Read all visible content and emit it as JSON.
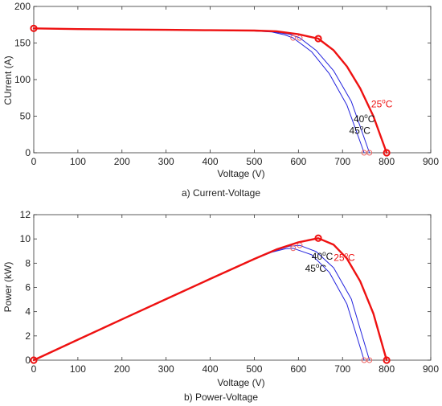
{
  "chart_data": [
    {
      "type": "line",
      "caption": "a) Current-Voltage",
      "title": "",
      "xlabel": "Voltage (V)",
      "ylabel": "CUrrent (A)",
      "xlim": [
        0,
        900
      ],
      "ylim": [
        0,
        200
      ],
      "xticks": [
        "0",
        "100",
        "200",
        "300",
        "400",
        "500",
        "600",
        "700",
        "800",
        "900"
      ],
      "yticks": [
        "0",
        "50",
        "100",
        "150",
        "200"
      ],
      "grid": false,
      "series": [
        {
          "temp": "25",
          "color": "#ee1111",
          "width": 2.4,
          "x": [
            0,
            100,
            200,
            300,
            400,
            500,
            550,
            600,
            645,
            680,
            710,
            740,
            770,
            800
          ],
          "y": [
            170,
            169,
            168.5,
            168,
            167.5,
            167,
            166,
            162,
            156,
            140,
            118,
            88,
            50,
            0
          ]
        },
        {
          "temp": "40",
          "color": "#2222dd",
          "width": 1,
          "x": [
            0,
            100,
            200,
            300,
            400,
            500,
            540,
            580,
            603,
            640,
            680,
            720,
            761
          ],
          "y": [
            170,
            169.3,
            168.7,
            168,
            167.3,
            166.5,
            165.5,
            162,
            157,
            140,
            112,
            70,
            0
          ]
        },
        {
          "temp": "45",
          "color": "#2222dd",
          "width": 1,
          "x": [
            0,
            100,
            200,
            300,
            400,
            500,
            540,
            570,
            588,
            630,
            670,
            710,
            749
          ],
          "y": [
            170,
            169.3,
            168.7,
            168,
            167.3,
            166.5,
            165,
            161,
            157,
            138,
            108,
            65,
            0
          ]
        }
      ],
      "markers": [
        {
          "x": 0,
          "y": 170,
          "color": "#ee1111",
          "size": "large"
        },
        {
          "x": 645,
          "y": 156,
          "color": "#ee1111",
          "size": "large"
        },
        {
          "x": 800,
          "y": 0,
          "color": "#ee1111",
          "size": "large"
        },
        {
          "x": 588,
          "y": 157,
          "color": "#ee6666",
          "size": "small"
        },
        {
          "x": 603,
          "y": 157,
          "color": "#ee6666",
          "size": "small"
        },
        {
          "x": 749,
          "y": 0,
          "color": "#ee6666",
          "size": "small"
        },
        {
          "x": 761,
          "y": 0,
          "color": "#ee6666",
          "size": "small"
        }
      ],
      "annotations": [
        {
          "text": "25",
          "sup": "o",
          "unit": "C",
          "x": 765,
          "y": 62,
          "color": "#ee1111"
        },
        {
          "text": "40",
          "sup": "o",
          "unit": "C",
          "x": 725,
          "y": 42,
          "color": "#111111"
        },
        {
          "text": "45",
          "sup": "o",
          "unit": "C",
          "x": 715,
          "y": 26,
          "color": "#111111"
        }
      ]
    },
    {
      "type": "line",
      "caption": "b) Power-Voltage",
      "title": "",
      "xlabel": "Voltage (V)",
      "ylabel": "Power (kW)",
      "xlim": [
        0,
        900
      ],
      "ylim": [
        0,
        12
      ],
      "xticks": [
        "0",
        "100",
        "200",
        "300",
        "400",
        "500",
        "600",
        "700",
        "800",
        "900"
      ],
      "yticks": [
        "0",
        "2",
        "4",
        "6",
        "8",
        "10",
        "12"
      ],
      "grid": false,
      "series": [
        {
          "temp": "25",
          "color": "#ee1111",
          "width": 2.4,
          "x": [
            0,
            100,
            200,
            300,
            400,
            500,
            550,
            600,
            645,
            680,
            710,
            740,
            770,
            800
          ],
          "y": [
            0,
            1.69,
            3.37,
            5.04,
            6.7,
            8.35,
            9.13,
            9.72,
            10.06,
            9.52,
            8.38,
            6.51,
            3.85,
            0
          ]
        },
        {
          "temp": "40",
          "color": "#2222dd",
          "width": 1,
          "x": [
            0,
            100,
            200,
            300,
            400,
            500,
            540,
            580,
            603,
            640,
            680,
            720,
            761
          ],
          "y": [
            0,
            1.69,
            3.37,
            5.04,
            6.69,
            8.33,
            8.94,
            9.4,
            9.47,
            8.96,
            7.62,
            5.04,
            0
          ]
        },
        {
          "temp": "45",
          "color": "#2222dd",
          "width": 1,
          "x": [
            0,
            100,
            200,
            300,
            400,
            500,
            540,
            570,
            588,
            630,
            670,
            710,
            749
          ],
          "y": [
            0,
            1.69,
            3.37,
            5.04,
            6.69,
            8.33,
            8.91,
            9.18,
            9.23,
            8.69,
            7.24,
            4.62,
            0
          ]
        }
      ],
      "markers": [
        {
          "x": 0,
          "y": 0,
          "color": "#ee1111",
          "size": "large"
        },
        {
          "x": 645,
          "y": 10.06,
          "color": "#ee1111",
          "size": "large"
        },
        {
          "x": 800,
          "y": 0,
          "color": "#ee1111",
          "size": "large"
        },
        {
          "x": 588,
          "y": 9.23,
          "color": "#ee6666",
          "size": "small"
        },
        {
          "x": 603,
          "y": 9.47,
          "color": "#ee6666",
          "size": "small"
        },
        {
          "x": 749,
          "y": 0,
          "color": "#ee6666",
          "size": "small"
        },
        {
          "x": 761,
          "y": 0,
          "color": "#ee6666",
          "size": "small"
        }
      ],
      "annotations": [
        {
          "text": "25",
          "sup": "o",
          "unit": "C",
          "x": 680,
          "y": 8.2,
          "color": "#ee1111"
        },
        {
          "text": "40",
          "sup": "o",
          "unit": "C",
          "x": 630,
          "y": 8.3,
          "color": "#111111"
        },
        {
          "text": "45",
          "sup": "o",
          "unit": "C",
          "x": 615,
          "y": 7.3,
          "color": "#111111"
        }
      ]
    }
  ]
}
